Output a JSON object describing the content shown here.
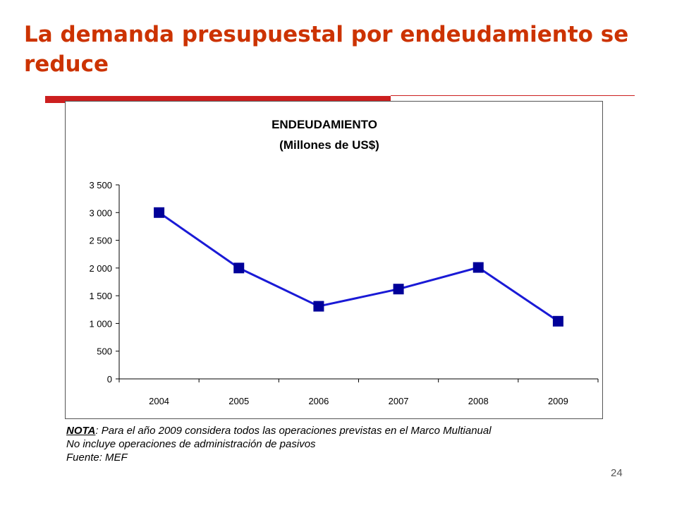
{
  "slide": {
    "title": "La demanda presupuestal por endeudamiento se reduce",
    "page_number": "24",
    "accent_color": "#cc1f1f",
    "title_color": "#cc3300"
  },
  "notes": {
    "label": "NOTA",
    "line1_rest": ": Para el año 2009 considera todos las operaciones previstas en el Marco Multianual",
    "line2": "No incluye operaciones de administración de pasivos",
    "line3": "Fuente: MEF"
  },
  "chart_data": {
    "type": "line",
    "title": "ENDEUDAMIENTO",
    "subtitle": "(Millones de US$)",
    "categories": [
      "2004",
      "2005",
      "2006",
      "2007",
      "2008",
      "2009"
    ],
    "series": [
      {
        "values": [
          3000,
          2000,
          1310,
          1620,
          2010,
          1040
        ],
        "color": "#1a1ad6",
        "marker_color": "#000099",
        "marker": "square"
      }
    ],
    "ylim": [
      0,
      3500
    ],
    "yticks": [
      0,
      500,
      1000,
      1500,
      2000,
      2500,
      3000,
      3500
    ],
    "ytick_labels": [
      "0",
      "500",
      "1 000",
      "1 500",
      "2 000",
      "2 500",
      "3 000",
      "3 500"
    ],
    "xlabel": "",
    "ylabel": "",
    "grid": false,
    "legend": "none"
  }
}
